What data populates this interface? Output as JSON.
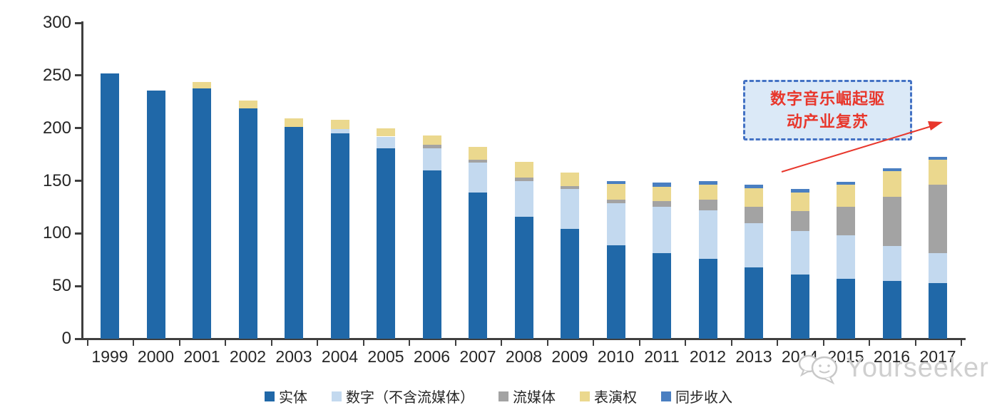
{
  "watermark": {
    "text": "Yourseeker"
  },
  "annotation": {
    "line1": "数字音乐崛起驱",
    "line2": "动产业复苏",
    "text_color": "#e8372c",
    "border_color": "#4472c4",
    "fill_color": "#dbe9f7",
    "arrow_color": "#e8372c"
  },
  "chart_data": {
    "type": "bar",
    "stacked": true,
    "title": "",
    "xlabel": "",
    "ylabel": "",
    "ylim": [
      0,
      300
    ],
    "yticks": [
      0,
      50,
      100,
      150,
      200,
      250,
      300
    ],
    "grid": false,
    "legend_position": "bottom",
    "categories": [
      "1999",
      "2000",
      "2001",
      "2002",
      "2003",
      "2004",
      "2005",
      "2006",
      "2007",
      "2008",
      "2009",
      "2010",
      "2011",
      "2012",
      "2013",
      "2014",
      "2015",
      "2016",
      "2017"
    ],
    "series": [
      {
        "name": "实体",
        "color": "#2068a8",
        "values": [
          252,
          236,
          238,
          219,
          201,
          195,
          181,
          160,
          139,
          116,
          104,
          89,
          81,
          76,
          68,
          61,
          57,
          55,
          53
        ]
      },
      {
        "name": "数字（不含流媒体）",
        "color": "#c3d9ef",
        "values": [
          0,
          0,
          0,
          0,
          0,
          4,
          11,
          21,
          28,
          34,
          38,
          40,
          44,
          46,
          42,
          41,
          41,
          33,
          28
        ]
      },
      {
        "name": "流媒体",
        "color": "#a3a3a3",
        "values": [
          0,
          0,
          0,
          0,
          0,
          0,
          0,
          3,
          3,
          3,
          3,
          3,
          6,
          10,
          15,
          19,
          27,
          47,
          65
        ]
      },
      {
        "name": "表演权",
        "color": "#ebd88e",
        "values": [
          0,
          0,
          6,
          7,
          8,
          9,
          8,
          9,
          12,
          15,
          13,
          15,
          13,
          14,
          18,
          18,
          21,
          24,
          24
        ]
      },
      {
        "name": "同步收入",
        "color": "#4a7fc1",
        "values": [
          0,
          0,
          0,
          0,
          0,
          0,
          0,
          0,
          0,
          0,
          0,
          3,
          4,
          4,
          3,
          3,
          3,
          3,
          3
        ]
      }
    ],
    "totals": [
      252,
      236,
      244,
      226,
      209,
      208,
      200,
      193,
      182,
      168,
      158,
      150,
      148,
      150,
      146,
      142,
      149,
      162,
      173
    ]
  }
}
